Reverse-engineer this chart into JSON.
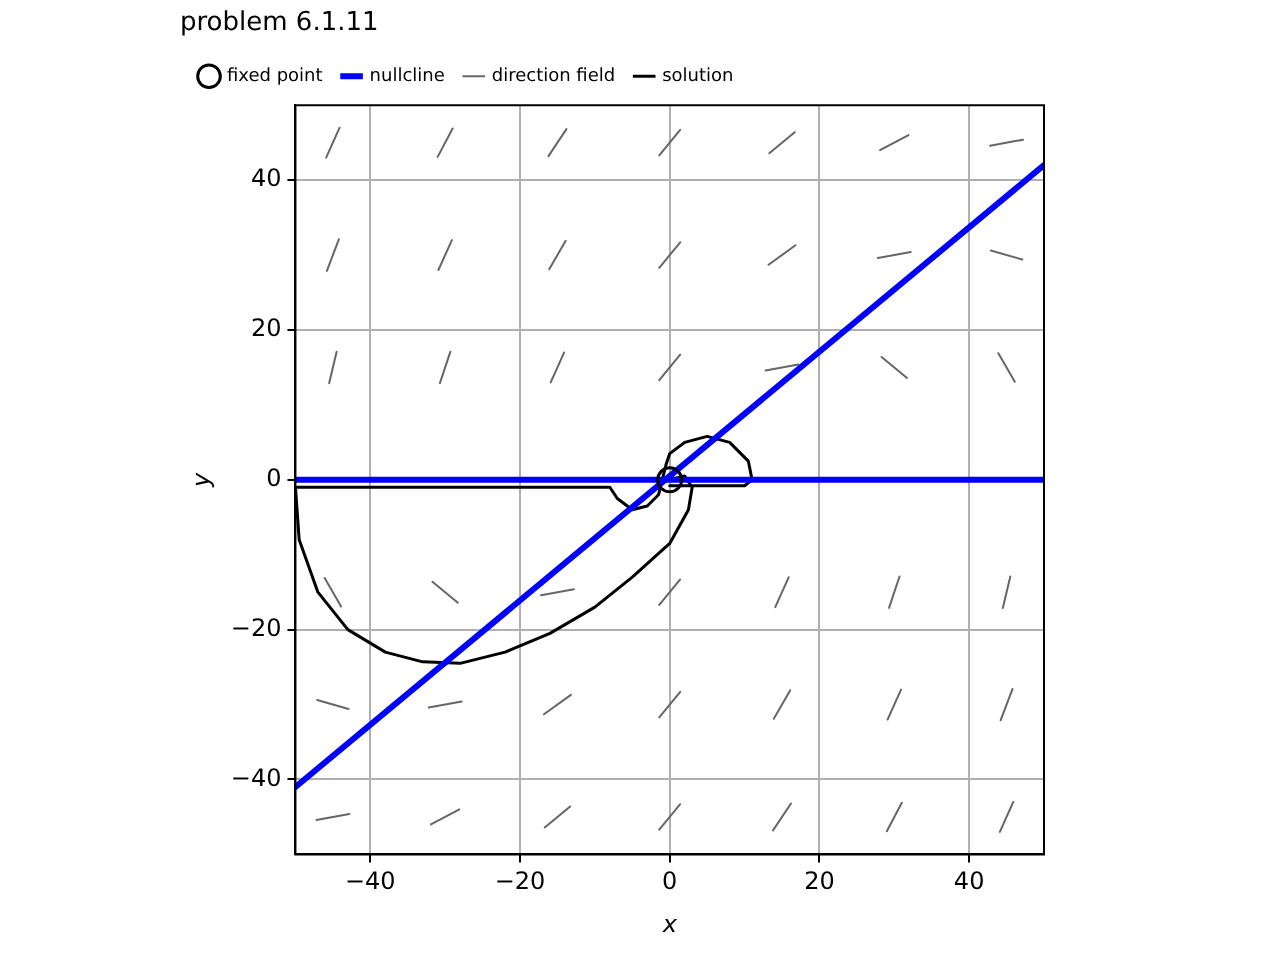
{
  "chart_data": {
    "type": "line",
    "title": "problem 6.1.11",
    "xlabel": "x",
    "ylabel": "y",
    "xlim": [
      -50,
      50
    ],
    "ylim": [
      -50,
      50
    ],
    "xticks": [
      -40,
      -20,
      0,
      20,
      40
    ],
    "yticks": [
      -40,
      -20,
      0,
      20,
      40
    ],
    "grid": true,
    "legend": "top left",
    "series": [
      {
        "name": "fixed point",
        "type": "scatter",
        "marker": "circle",
        "color": "#000000",
        "x": [
          0
        ],
        "values": [
          0
        ]
      },
      {
        "name": "nullcline",
        "color": "#0000ff",
        "x": [
          -50,
          50
        ],
        "values": [
          0,
          0
        ]
      },
      {
        "color": "#0000ff",
        "x": [
          -50,
          50
        ],
        "values": [
          -41,
          42
        ]
      },
      {
        "name": "direction field",
        "color": "#666666",
        "x": [
          -45.9,
          -44.1
        ],
        "values": [
          43.0,
          47.0
        ]
      },
      {
        "color": "#666666",
        "x": [
          -31.0,
          -29.0
        ],
        "values": [
          43.1,
          46.9
        ]
      },
      {
        "color": "#666666",
        "x": [
          -16.2,
          -13.8
        ],
        "values": [
          43.2,
          46.8
        ]
      },
      {
        "color": "#666666",
        "x": [
          -1.4,
          1.4
        ],
        "values": [
          43.3,
          46.7
        ]
      },
      {
        "color": "#666666",
        "x": [
          13.3,
          16.7
        ],
        "values": [
          43.6,
          46.4
        ]
      },
      {
        "color": "#666666",
        "x": [
          28.1,
          31.9
        ],
        "values": [
          44.0,
          46.0
        ]
      },
      {
        "color": "#666666",
        "x": [
          42.8,
          47.2
        ],
        "values": [
          44.6,
          45.4
        ]
      },
      {
        "color": "#666666",
        "x": [
          -45.8,
          -44.2
        ],
        "values": [
          27.9,
          32.1
        ]
      },
      {
        "color": "#666666",
        "x": [
          -30.9,
          -29.1
        ],
        "values": [
          28.0,
          32.0
        ]
      },
      {
        "color": "#666666",
        "x": [
          -16.1,
          -13.9
        ],
        "values": [
          28.1,
          31.9
        ]
      },
      {
        "color": "#666666",
        "x": [
          -1.4,
          1.4
        ],
        "values": [
          28.3,
          31.7
        ]
      },
      {
        "color": "#666666",
        "x": [
          13.2,
          16.8
        ],
        "values": [
          28.7,
          31.3
        ]
      },
      {
        "color": "#666666",
        "x": [
          27.8,
          32.2
        ],
        "values": [
          29.6,
          30.4
        ]
      },
      {
        "color": "#666666",
        "x": [
          42.9,
          47.1
        ],
        "values": [
          30.6,
          29.4
        ]
      },
      {
        "color": "#666666",
        "x": [
          -45.5,
          -44.5
        ],
        "values": [
          12.9,
          17.1
        ]
      },
      {
        "color": "#666666",
        "x": [
          -30.7,
          -29.3
        ],
        "values": [
          12.9,
          17.1
        ]
      },
      {
        "color": "#666666",
        "x": [
          -15.9,
          -14.1
        ],
        "values": [
          13.0,
          17.0
        ]
      },
      {
        "color": "#666666",
        "x": [
          -1.4,
          1.4
        ],
        "values": [
          13.3,
          16.7
        ]
      },
      {
        "color": "#666666",
        "x": [
          12.8,
          17.2
        ],
        "values": [
          14.6,
          15.4
        ]
      },
      {
        "color": "#666666",
        "x": [
          28.3,
          31.7
        ],
        "values": [
          16.4,
          13.6
        ]
      },
      {
        "color": "#666666",
        "x": [
          43.9,
          46.1
        ],
        "values": [
          16.9,
          13.1
        ]
      },
      {
        "color": "#666666",
        "x": [
          -46.1,
          -43.9
        ],
        "values": [
          -13.1,
          -16.9
        ]
      },
      {
        "color": "#666666",
        "x": [
          -31.7,
          -28.3
        ],
        "values": [
          -13.6,
          -16.4
        ]
      },
      {
        "color": "#666666",
        "x": [
          -17.2,
          -12.8
        ],
        "values": [
          -15.4,
          -14.6
        ]
      },
      {
        "color": "#666666",
        "x": [
          -1.4,
          1.4
        ],
        "values": [
          -16.7,
          -13.3
        ]
      },
      {
        "color": "#666666",
        "x": [
          14.1,
          15.9
        ],
        "values": [
          -17.0,
          -13.0
        ]
      },
      {
        "color": "#666666",
        "x": [
          29.3,
          30.7
        ],
        "values": [
          -17.1,
          -12.9
        ]
      },
      {
        "color": "#666666",
        "x": [
          44.5,
          45.5
        ],
        "values": [
          -17.1,
          -12.9
        ]
      },
      {
        "color": "#666666",
        "x": [
          -47.1,
          -42.9
        ],
        "values": [
          -29.4,
          -30.6
        ]
      },
      {
        "color": "#666666",
        "x": [
          -32.2,
          -27.8
        ],
        "values": [
          -30.4,
          -29.6
        ]
      },
      {
        "color": "#666666",
        "x": [
          -16.8,
          -13.2
        ],
        "values": [
          -31.3,
          -28.7
        ]
      },
      {
        "color": "#666666",
        "x": [
          -1.4,
          1.4
        ],
        "values": [
          -31.7,
          -28.3
        ]
      },
      {
        "color": "#666666",
        "x": [
          13.9,
          16.1
        ],
        "values": [
          -31.9,
          -28.1
        ]
      },
      {
        "color": "#666666",
        "x": [
          29.1,
          30.9
        ],
        "values": [
          -32.0,
          -28.0
        ]
      },
      {
        "color": "#666666",
        "x": [
          44.2,
          45.8
        ],
        "values": [
          -32.1,
          -27.9
        ]
      },
      {
        "color": "#666666",
        "x": [
          -47.2,
          -42.8
        ],
        "values": [
          -45.4,
          -44.6
        ]
      },
      {
        "color": "#666666",
        "x": [
          -31.9,
          -28.1
        ],
        "values": [
          -46.0,
          -44.0
        ]
      },
      {
        "color": "#666666",
        "x": [
          -16.7,
          -13.3
        ],
        "values": [
          -46.4,
          -43.6
        ]
      },
      {
        "color": "#666666",
        "x": [
          -1.4,
          1.4
        ],
        "values": [
          -46.7,
          -43.3
        ]
      },
      {
        "color": "#666666",
        "x": [
          13.8,
          16.2
        ],
        "values": [
          -46.8,
          -43.2
        ]
      },
      {
        "color": "#666666",
        "x": [
          29.0,
          31.0
        ],
        "values": [
          -46.9,
          -43.1
        ]
      },
      {
        "color": "#666666",
        "x": [
          44.1,
          45.9
        ],
        "values": [
          -47.0,
          -43.0
        ]
      },
      {
        "name": "solution",
        "color": "#000000",
        "x": [
          -50,
          -8,
          -7,
          -5,
          -3,
          -1.5,
          -1,
          -0.5,
          0,
          2,
          5,
          8,
          10.5,
          11,
          10,
          0
        ],
        "values": [
          -1,
          -1,
          -2.5,
          -4,
          -3.5,
          -2,
          0,
          2,
          3.5,
          5,
          5.8,
          5,
          2.5,
          0,
          -0.8,
          -0.8
        ]
      },
      {
        "color": "#000000",
        "x": [
          -50,
          -49.5,
          -47,
          -43,
          -38,
          -33,
          -28,
          -22,
          -16,
          -10,
          -5,
          0,
          2.5,
          3,
          2,
          0
        ],
        "values": [
          -1,
          -8,
          -15,
          -20,
          -23,
          -24.3,
          -24.5,
          -23,
          -20.5,
          -17,
          -13,
          -8.5,
          -4,
          -1,
          0.5,
          0
        ]
      }
    ]
  }
}
